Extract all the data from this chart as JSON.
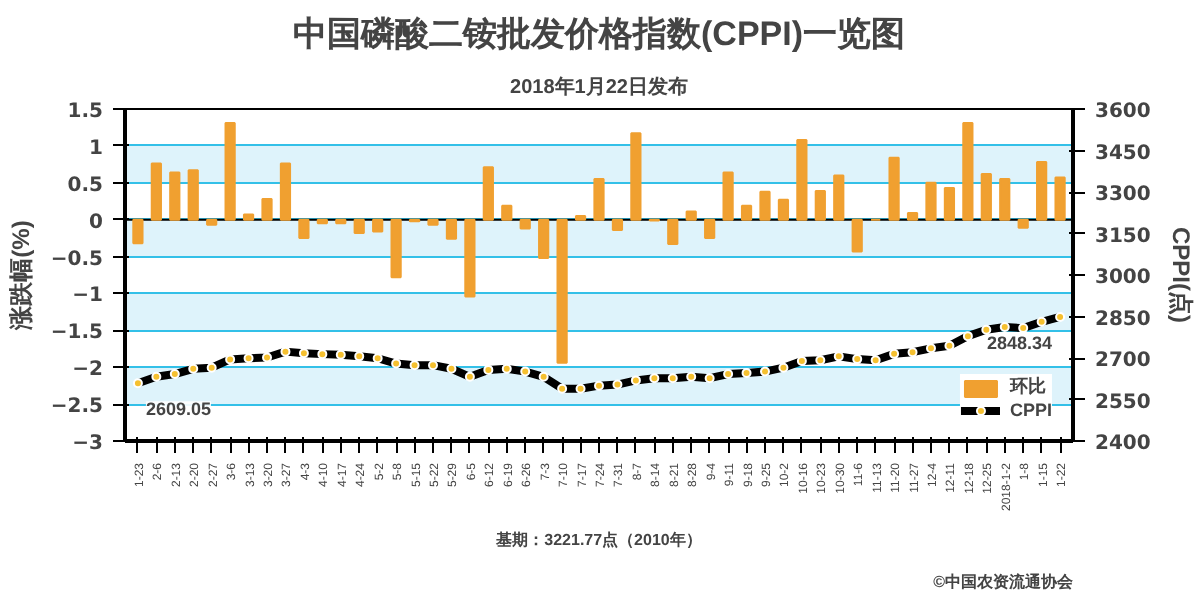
{
  "chart_data": {
    "type": "bar",
    "title": "中国磷酸二铵批发价格指数(CPPI)一览图",
    "subtitle": "2018年1月22日发布",
    "ylabel": "涨跌幅(%)",
    "y2label": "CPPI(点)",
    "categories": [
      "1-23",
      "2-6",
      "2-13",
      "2-20",
      "2-27",
      "3-6",
      "3-13",
      "3-20",
      "3-27",
      "4-3",
      "4-10",
      "4-17",
      "4-24",
      "5-2",
      "5-8",
      "5-15",
      "5-22",
      "5-29",
      "6-5",
      "6-12",
      "6-19",
      "6-26",
      "7-3",
      "7-10",
      "7-17",
      "7-24",
      "7-31",
      "8-7",
      "8-14",
      "8-21",
      "8-28",
      "9-4",
      "9-11",
      "9-18",
      "9-25",
      "10-2",
      "10-16",
      "10-23",
      "10-30",
      "11-6",
      "11-13",
      "11-20",
      "11-27",
      "12-4",
      "12-11",
      "12-18",
      "12-25",
      "2018-1-2",
      "1-8",
      "1-15",
      "1-22"
    ],
    "series": [
      {
        "name": "环比",
        "color": "#f0a030",
        "values": [
          -0.32,
          0.76,
          0.64,
          0.67,
          -0.07,
          1.31,
          0.07,
          0.28,
          0.76,
          -0.25,
          -0.05,
          -0.05,
          -0.18,
          -0.16,
          -0.78,
          -0.02,
          -0.07,
          -0.26,
          -1.04,
          0.71,
          0.19,
          -0.12,
          -0.52,
          -1.94,
          0.05,
          0.55,
          -0.14,
          1.17,
          -0.01,
          -0.33,
          0.11,
          -0.25,
          0.64,
          0.19,
          0.38,
          0.27,
          1.08,
          0.39,
          0.6,
          -0.43,
          0,
          0.84,
          0.09,
          0.5,
          0.43,
          1.31,
          0.62,
          0.55,
          -0.11,
          0.78,
          0.57
        ]
      },
      {
        "name": "CPPI",
        "type": "line",
        "axis": "y2",
        "color": "#000000",
        "marker": "circle",
        "values": [
          2609.05,
          2632,
          2642,
          2661,
          2665,
          2695,
          2699,
          2702,
          2723,
          2717,
          2714,
          2712,
          2706,
          2699,
          2680,
          2674,
          2674,
          2661,
          2632,
          2657,
          2661,
          2651,
          2632,
          2589,
          2589,
          2600,
          2604,
          2619,
          2627,
          2627,
          2632,
          2627,
          2642,
          2646,
          2651,
          2665,
          2689,
          2692,
          2706,
          2696,
          2692,
          2715,
          2721,
          2735,
          2744,
          2779,
          2802,
          2812,
          2808,
          2831,
          2848.34
        ],
        "value_labels": [
          "2609.05",
          null,
          null,
          null,
          null,
          null,
          null,
          null,
          null,
          null,
          null,
          null,
          null,
          null,
          null,
          null,
          null,
          null,
          null,
          null,
          null,
          null,
          null,
          null,
          null,
          null,
          null,
          null,
          null,
          null,
          null,
          null,
          null,
          null,
          null,
          null,
          null,
          null,
          null,
          null,
          null,
          null,
          null,
          null,
          null,
          null,
          null,
          null,
          null,
          null,
          "2848.34"
        ]
      }
    ],
    "ylim": [
      -3,
      1.5
    ],
    "yticks": [
      -3,
      -2.5,
      -2,
      -1.5,
      -1,
      -0.5,
      0,
      0.5,
      1,
      1.5
    ],
    "y2lim": [
      2400,
      3600
    ],
    "y2ticks": [
      2400,
      2550,
      2700,
      2850,
      3000,
      3150,
      3300,
      3450,
      3600
    ],
    "grid": "y",
    "legend": "bottom right",
    "annotations": [
      "基期：3221.77点（2010年）",
      "©中国农资流通协会"
    ]
  }
}
